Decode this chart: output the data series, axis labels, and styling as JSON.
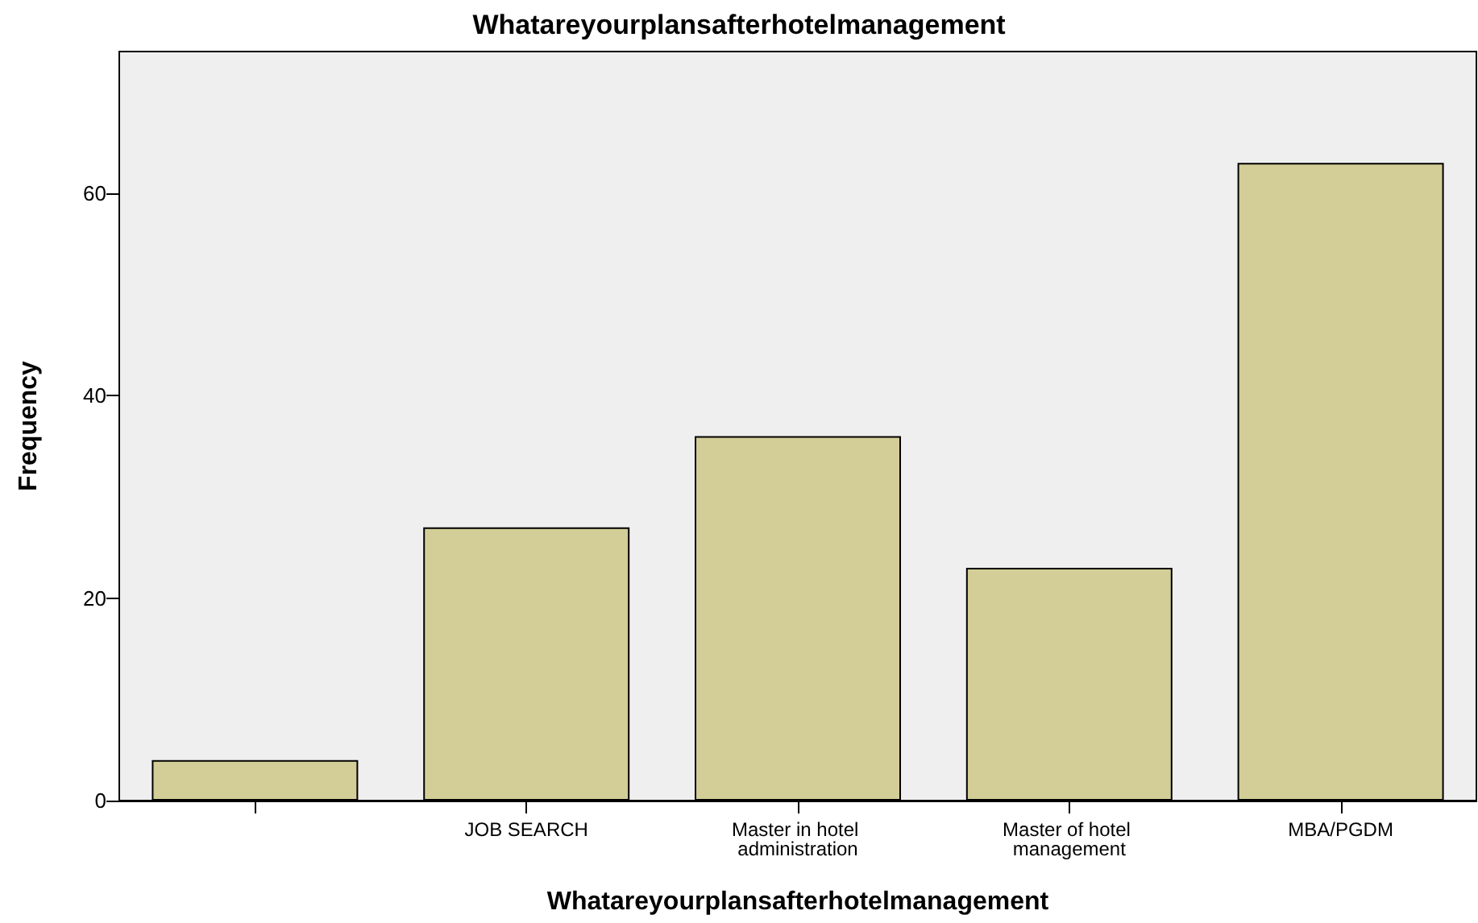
{
  "chart_data": {
    "type": "bar",
    "title": "Whatareyourplansafterhotelmanagement",
    "xlabel": "Whatareyourplansafterhotelmanagement",
    "ylabel": "Frequency",
    "categories": [
      null,
      "JOB SEARCH",
      "Master in hotel administration",
      "Master of hotel management",
      "MBA/PGDM"
    ],
    "values": [
      4,
      27,
      36,
      23,
      63
    ],
    "color": "#d3cd97",
    "ylim": [
      0,
      74
    ],
    "yticks": [
      0,
      20,
      40,
      60
    ]
  }
}
